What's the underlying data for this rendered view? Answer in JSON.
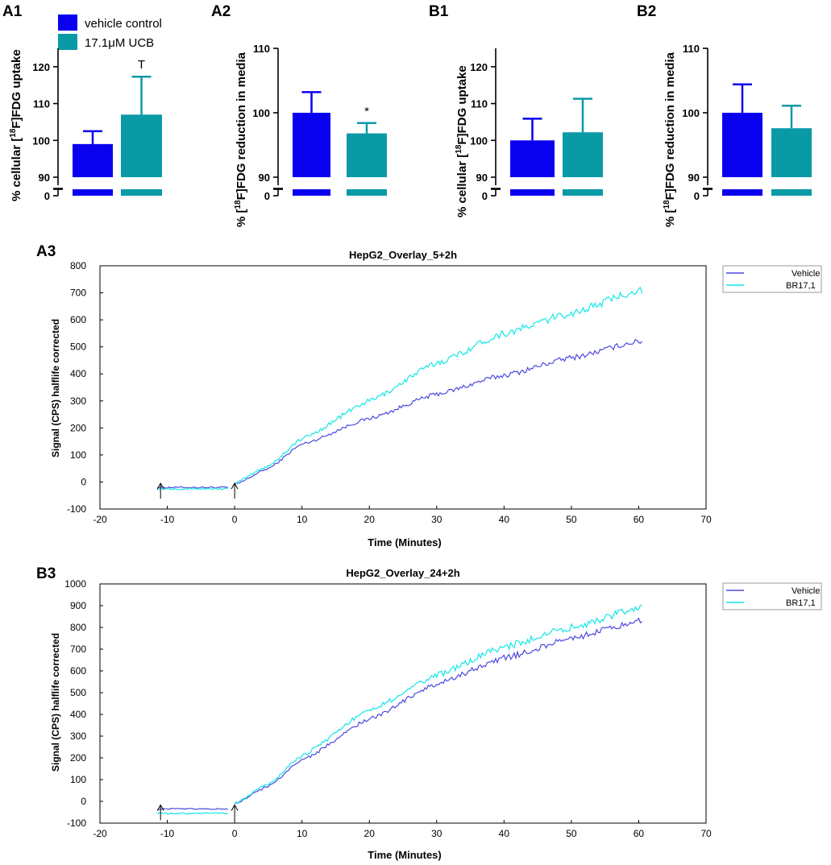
{
  "legend": {
    "vehicle_label": "vehicle control",
    "ucb_label": "17.1μM UCB",
    "vehicle_color": "#0a00f0",
    "ucb_color": "#0a9aa6"
  },
  "panel_labels": {
    "A1": "A1",
    "A2": "A2",
    "B1": "B1",
    "B2": "B2",
    "A3": "A3",
    "B3": "B3"
  },
  "bar_ylabels": {
    "uptake_prefix": "% cellular [",
    "uptake_sup": "18",
    "uptake_suffix": "F]FDG  uptake",
    "media_prefix": "% [",
    "media_sup": "18",
    "media_suffix": "F]FDG  reduction in media"
  },
  "line_common": {
    "ylabel": "Signal (CPS) halflife corrected",
    "xlabel": "Time (Minutes)",
    "legend_vehicle": "Vehicle",
    "legend_br": "BR17,1",
    "vehicle_color": "#4a4ae0",
    "br_color": "#14e6e6"
  },
  "chart_data": [
    {
      "id": "A1",
      "type": "bar",
      "categories": [
        "vehicle control",
        "17.1μM UCB"
      ],
      "values": [
        99,
        107
      ],
      "errors": [
        3.5,
        10.3
      ],
      "significance": [
        "",
        "T"
      ],
      "ylim": [
        90,
        125
      ],
      "yticks": [
        90,
        100,
        110,
        120
      ],
      "ybreak_low": 0
    },
    {
      "id": "A2",
      "type": "bar",
      "categories": [
        "vehicle control",
        "17.1μM UCB"
      ],
      "values": [
        100,
        96.8
      ],
      "errors": [
        3.2,
        1.6
      ],
      "significance": [
        "",
        "*"
      ],
      "ylim": [
        90,
        110
      ],
      "yticks": [
        90,
        100,
        110
      ],
      "ybreak_low": 0
    },
    {
      "id": "B1",
      "type": "bar",
      "categories": [
        "vehicle control",
        "17.1μM UCB"
      ],
      "values": [
        100,
        102.2
      ],
      "errors": [
        5.9,
        9.1
      ],
      "significance": [
        "",
        ""
      ],
      "ylim": [
        90,
        125
      ],
      "yticks": [
        90,
        100,
        110,
        120
      ],
      "ybreak_low": 0
    },
    {
      "id": "B2",
      "type": "bar",
      "categories": [
        "vehicle control",
        "17.1μM UCB"
      ],
      "values": [
        100,
        97.6
      ],
      "errors": [
        4.4,
        3.5
      ],
      "significance": [
        "",
        ""
      ],
      "ylim": [
        90,
        110
      ],
      "yticks": [
        90,
        100,
        110
      ],
      "ybreak_low": 0
    },
    {
      "id": "A3",
      "type": "line",
      "title": "HepG2_Overlay_5+2h",
      "xlim": [
        -20,
        70
      ],
      "ylim": [
        -100,
        800
      ],
      "xticks": [
        -20,
        -10,
        0,
        10,
        20,
        30,
        40,
        50,
        60,
        70
      ],
      "yticks": [
        -100,
        0,
        100,
        200,
        300,
        400,
        500,
        600,
        700,
        800
      ],
      "arrows_x": [
        -11,
        0
      ],
      "series": [
        {
          "name": "Vehicle",
          "pre_level": -20,
          "points": [
            [
              0,
              -10
            ],
            [
              5,
              50
            ],
            [
              10,
              140
            ],
            [
              20,
              235
            ],
            [
              30,
              325
            ],
            [
              40,
              395
            ],
            [
              50,
              460
            ],
            [
              60,
              520
            ]
          ],
          "noise": 10
        },
        {
          "name": "BR17,1",
          "pre_level": -25,
          "points": [
            [
              0,
              -5
            ],
            [
              5,
              60
            ],
            [
              10,
              160
            ],
            [
              20,
              300
            ],
            [
              30,
              440
            ],
            [
              40,
              550
            ],
            [
              50,
              625
            ],
            [
              60,
              710
            ]
          ],
          "noise": 14
        }
      ]
    },
    {
      "id": "B3",
      "type": "line",
      "title": "HepG2_Overlay_24+2h",
      "xlim": [
        -20,
        70
      ],
      "ylim": [
        -100,
        1000
      ],
      "xticks": [
        -20,
        -10,
        0,
        10,
        20,
        30,
        40,
        50,
        60,
        70
      ],
      "yticks": [
        -100,
        0,
        100,
        200,
        300,
        400,
        500,
        600,
        700,
        800,
        900,
        1000
      ],
      "arrows_x": [
        -11,
        0
      ],
      "series": [
        {
          "name": "Vehicle",
          "pre_level": -35,
          "points": [
            [
              0,
              -10
            ],
            [
              5,
              70
            ],
            [
              10,
              190
            ],
            [
              20,
              380
            ],
            [
              30,
              540
            ],
            [
              40,
              660
            ],
            [
              50,
              750
            ],
            [
              60,
              830
            ]
          ],
          "noise": 14
        },
        {
          "name": "BR17,1",
          "pre_level": -55,
          "points": [
            [
              0,
              -10
            ],
            [
              5,
              80
            ],
            [
              10,
              210
            ],
            [
              20,
              420
            ],
            [
              30,
              580
            ],
            [
              40,
              710
            ],
            [
              50,
              800
            ],
            [
              60,
              890
            ]
          ],
          "noise": 16
        }
      ]
    }
  ]
}
